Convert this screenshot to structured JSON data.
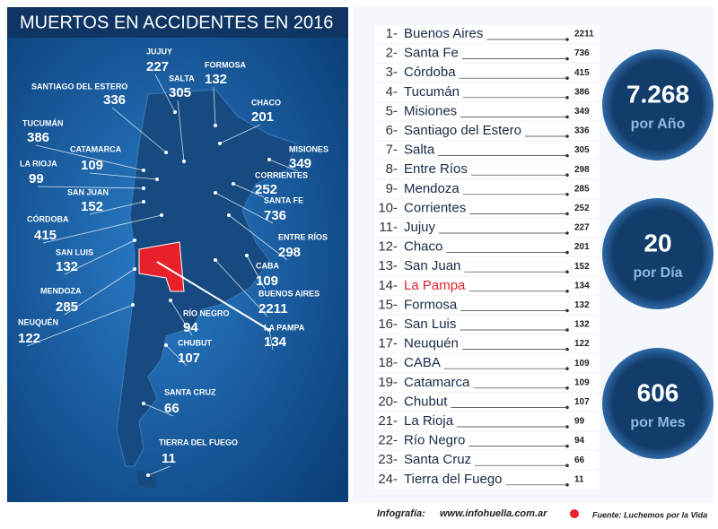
{
  "header": {
    "title": "MUERTOS EN ACCIDENTES EN 2016"
  },
  "map_labels": [
    {
      "name": "JUJUY",
      "value": 227
    },
    {
      "name": "FORMOSA",
      "value": 132
    },
    {
      "name": "SALTA",
      "value": 305
    },
    {
      "name": "SANTIAGO DEL ESTERO",
      "value": 336
    },
    {
      "name": "CHACO",
      "value": 201
    },
    {
      "name": "TUCUMÁN",
      "value": 386
    },
    {
      "name": "MISIONES",
      "value": 349
    },
    {
      "name": "CATAMARCA",
      "value": 109
    },
    {
      "name": "LA RIOJA",
      "value": 99
    },
    {
      "name": "CORRIENTES",
      "value": 252
    },
    {
      "name": "SAN JUAN",
      "value": 152
    },
    {
      "name": "SANTA FE",
      "value": 736
    },
    {
      "name": "CÓRDOBA",
      "value": 415
    },
    {
      "name": "ENTRE RÍOS",
      "value": 298
    },
    {
      "name": "SAN LUIS",
      "value": 132
    },
    {
      "name": "CABA",
      "value": 109
    },
    {
      "name": "BUENOS AIRES",
      "value": 2211
    },
    {
      "name": "MENDOZA",
      "value": 285
    },
    {
      "name": "RÍO NEGRO",
      "value": 94
    },
    {
      "name": "NEUQUÉN",
      "value": 122
    },
    {
      "name": "LA PAMPA",
      "value": 134
    },
    {
      "name": "CHUBUT",
      "value": 107
    },
    {
      "name": "SANTA CRUZ",
      "value": 66
    },
    {
      "name": "TIERRA DEL FUEGO",
      "value": 11
    }
  ],
  "ranking": [
    {
      "rank": "1-",
      "name": "Buenos Aires",
      "value": 2211
    },
    {
      "rank": "2-",
      "name": "Santa Fe",
      "value": 736
    },
    {
      "rank": "3-",
      "name": "Córdoba",
      "value": 415
    },
    {
      "rank": "4-",
      "name": "Tucumán",
      "value": 386
    },
    {
      "rank": "5-",
      "name": "Misiones",
      "value": 349
    },
    {
      "rank": "6-",
      "name": "Santiago del Estero",
      "value": 336
    },
    {
      "rank": "7-",
      "name": "Salta",
      "value": 305
    },
    {
      "rank": "8-",
      "name": "Entre Ríos",
      "value": 298
    },
    {
      "rank": "9-",
      "name": "Mendoza",
      "value": 285
    },
    {
      "rank": "10-",
      "name": "Corrientes",
      "value": 252
    },
    {
      "rank": "11-",
      "name": "Jujuy",
      "value": 227
    },
    {
      "rank": "12-",
      "name": "Chaco",
      "value": 201
    },
    {
      "rank": "13-",
      "name": "San Juan",
      "value": 152
    },
    {
      "rank": "14-",
      "name": "La Pampa",
      "value": 134,
      "color": "#e8202a"
    },
    {
      "rank": "15-",
      "name": "Formosa",
      "value": 132
    },
    {
      "rank": "16-",
      "name": "San Luis",
      "value": 132
    },
    {
      "rank": "17-",
      "name": "Neuquén",
      "value": 122
    },
    {
      "rank": "18-",
      "name": "CABA",
      "value": 109
    },
    {
      "rank": "19-",
      "name": "Catamarca",
      "value": 109
    },
    {
      "rank": "20-",
      "name": "Chubut",
      "value": 107
    },
    {
      "rank": "21-",
      "name": "La Rioja",
      "value": 99
    },
    {
      "rank": "22-",
      "name": "Río Negro",
      "value": 94
    },
    {
      "rank": "23-",
      "name": "Santa Cruz",
      "value": 66
    },
    {
      "rank": "24-",
      "name": "Tierra del Fuego",
      "value": 11
    }
  ],
  "stats": [
    {
      "value": "7.268",
      "label": "por Año"
    },
    {
      "value": "20",
      "label": "por Día"
    },
    {
      "value": "606",
      "label": "por Mes"
    }
  ],
  "footer": {
    "credit_label": "Infografía:",
    "credit_site": "www.infohuella.com.ar",
    "source": "Fuente: Luchemos por la Vida"
  }
}
